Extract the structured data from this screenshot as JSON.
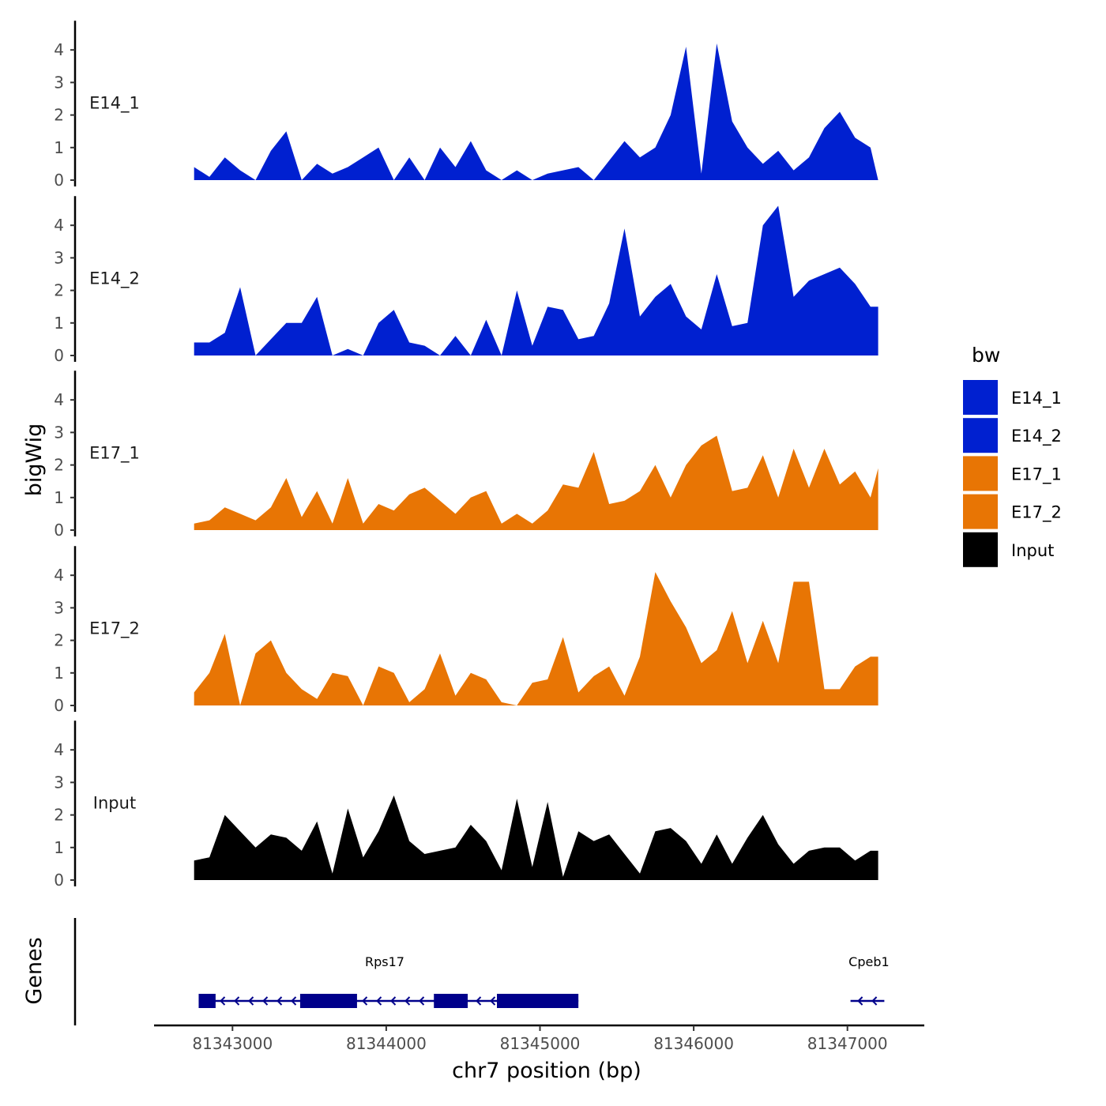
{
  "chart_data": {
    "type": "area",
    "x": [
      81342750,
      81342850,
      81342950,
      81343050,
      81343150,
      81343250,
      81343350,
      81343450,
      81343550,
      81343650,
      81343750,
      81343850,
      81343950,
      81344050,
      81344150,
      81344250,
      81344350,
      81344450,
      81344550,
      81344650,
      81344750,
      81344850,
      81344950,
      81345050,
      81345150,
      81345250,
      81345350,
      81345450,
      81345550,
      81345650,
      81345750,
      81345850,
      81345950,
      81346050,
      81346150,
      81346250,
      81346350,
      81346450,
      81346550,
      81346650,
      81346750,
      81346850,
      81346950,
      81347050,
      81347150,
      81347200
    ],
    "xlim": [
      81342500,
      81347500
    ],
    "ylim": [
      0,
      4.8
    ],
    "xticks": [
      81343000,
      81344000,
      81345000,
      81346000,
      81347000
    ],
    "xtick_labels": [
      "81343000",
      "81344000",
      "81345000",
      "81346000",
      "81347000"
    ],
    "yticks": [
      0,
      1,
      2,
      3,
      4
    ],
    "ytick_labels": [
      "0",
      "1",
      "2",
      "3",
      "4"
    ],
    "xlabel": "chr7 position (bp)",
    "ylabel": "bigWig",
    "legend_title": "bw",
    "legend_position": "right",
    "series": [
      {
        "name": "E14_1",
        "color": "#0020D0",
        "values": [
          0.4,
          0.1,
          0.7,
          0.3,
          0.0,
          0.9,
          1.5,
          0.0,
          0.5,
          0.2,
          0.4,
          0.7,
          1.0,
          0.0,
          0.7,
          0.0,
          1.0,
          0.4,
          1.2,
          0.3,
          0.0,
          0.3,
          0.0,
          0.2,
          0.3,
          0.4,
          0.0,
          0.6,
          1.2,
          0.7,
          1.0,
          2.0,
          4.1,
          0.2,
          4.2,
          1.8,
          1.0,
          0.5,
          0.9,
          0.3,
          0.7,
          1.6,
          2.1,
          1.3,
          1.0,
          0.0
        ]
      },
      {
        "name": "E14_2",
        "color": "#0020D0",
        "values": [
          0.4,
          0.4,
          0.7,
          2.1,
          0.0,
          0.5,
          1.0,
          1.0,
          1.8,
          0.0,
          0.2,
          0.0,
          1.0,
          1.4,
          0.4,
          0.3,
          0.0,
          0.6,
          0.0,
          1.1,
          0.0,
          2.0,
          0.3,
          1.5,
          1.4,
          0.5,
          0.6,
          1.6,
          3.9,
          1.2,
          1.8,
          2.2,
          1.2,
          0.8,
          2.5,
          0.9,
          1.0,
          4.0,
          4.6,
          1.8,
          2.3,
          2.5,
          2.7,
          2.2,
          1.5,
          1.5
        ]
      },
      {
        "name": "E17_1",
        "color": "#E87504",
        "values": [
          0.2,
          0.3,
          0.7,
          0.5,
          0.3,
          0.7,
          1.6,
          0.4,
          1.2,
          0.2,
          1.6,
          0.2,
          0.8,
          0.6,
          1.1,
          1.3,
          0.9,
          0.5,
          1.0,
          1.2,
          0.2,
          0.5,
          0.2,
          0.6,
          1.4,
          1.3,
          2.4,
          0.8,
          0.9,
          1.2,
          2.0,
          1.0,
          2.0,
          2.6,
          2.9,
          1.2,
          1.3,
          2.3,
          1.0,
          2.5,
          1.3,
          2.5,
          1.4,
          1.8,
          1.0,
          1.9
        ]
      },
      {
        "name": "E17_2",
        "color": "#E87504",
        "values": [
          0.4,
          1.0,
          2.2,
          0.0,
          1.6,
          2.0,
          1.0,
          0.5,
          0.2,
          1.0,
          0.9,
          0.0,
          1.2,
          1.0,
          0.1,
          0.5,
          1.6,
          0.3,
          1.0,
          0.8,
          0.1,
          0.0,
          0.7,
          0.8,
          2.1,
          0.4,
          0.9,
          1.2,
          0.3,
          1.5,
          4.1,
          3.2,
          2.4,
          1.3,
          1.7,
          2.9,
          1.3,
          2.6,
          1.3,
          3.8,
          3.8,
          0.5,
          0.5,
          1.2,
          1.5,
          1.5
        ]
      },
      {
        "name": "Input",
        "color": "#000000",
        "values": [
          0.6,
          0.7,
          2.0,
          1.5,
          1.0,
          1.4,
          1.3,
          0.9,
          1.8,
          0.2,
          2.2,
          0.7,
          1.5,
          2.6,
          1.2,
          0.8,
          0.9,
          1.0,
          1.7,
          1.2,
          0.3,
          2.5,
          0.4,
          2.4,
          0.1,
          1.5,
          1.2,
          1.4,
          0.8,
          0.2,
          1.5,
          1.6,
          1.2,
          0.5,
          1.4,
          0.5,
          1.3,
          2.0,
          1.1,
          0.5,
          0.9,
          1.0,
          1.0,
          0.6,
          0.9,
          0.9
        ]
      }
    ],
    "genes": {
      "panel_label": "Genes",
      "color": "#00008B",
      "items": [
        {
          "name": "Rps17",
          "strand": "-",
          "start": 81342780,
          "end": 81345250,
          "label_pos": 81343990,
          "exons": [
            [
              81342780,
              81342890
            ],
            [
              81343440,
              81343810
            ],
            [
              81344310,
              81344530
            ],
            [
              81344720,
              81345250
            ]
          ]
        },
        {
          "name": "Cpeb1",
          "strand": "-",
          "start": 81347020,
          "end": 81347240,
          "label_pos": 81347140,
          "exons": []
        }
      ]
    }
  }
}
